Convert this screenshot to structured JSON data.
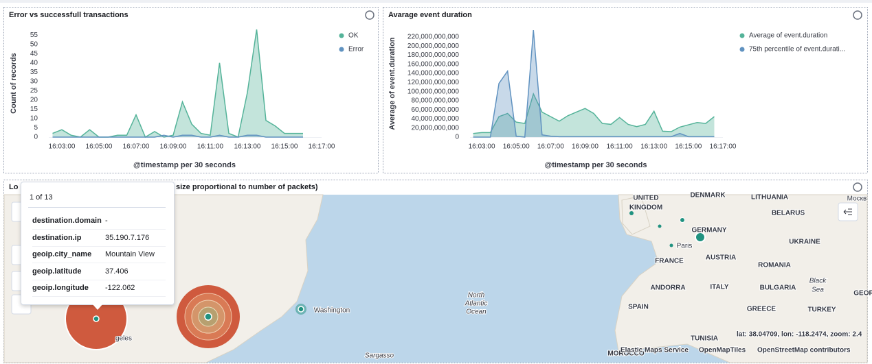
{
  "chart_data": [
    {
      "type": "area",
      "title": "Error vs successfull transactions",
      "y_label": "Count of records",
      "x_label": "@timestamp per 30 seconds",
      "x": [
        "16:02:30",
        "16:03:00",
        "16:03:30",
        "16:04:00",
        "16:04:30",
        "16:05:00",
        "16:05:30",
        "16:06:00",
        "16:06:30",
        "16:07:00",
        "16:07:30",
        "16:08:00",
        "16:08:30",
        "16:09:00",
        "16:09:30",
        "16:10:00",
        "16:10:30",
        "16:11:00",
        "16:11:30",
        "16:12:00",
        "16:12:30",
        "16:13:00",
        "16:13:30",
        "16:14:00",
        "16:14:30",
        "16:15:00",
        "16:15:30",
        "16:16:00"
      ],
      "series": [
        {
          "name": "OK",
          "color": "#54b399",
          "values": [
            2,
            4,
            1,
            0,
            4,
            0,
            0,
            1,
            1,
            12,
            0,
            3,
            0,
            1,
            19,
            7,
            2,
            1,
            40,
            2,
            0,
            24,
            58,
            9,
            6,
            2,
            2,
            2
          ]
        },
        {
          "name": "Error",
          "color": "#6092c0",
          "values": [
            0,
            0,
            0,
            0,
            0,
            0,
            0,
            0,
            0,
            0,
            0,
            0,
            1,
            0,
            1,
            1,
            0,
            0,
            1,
            0,
            0,
            1,
            1,
            0,
            0,
            0,
            0,
            0
          ]
        }
      ],
      "xlim": [
        "16:02:00",
        "16:17:00"
      ],
      "xticks": [
        "16:03:00",
        "16:05:00",
        "16:07:00",
        "16:09:00",
        "16:11:00",
        "16:13:00",
        "16:15:00",
        "16:17:00"
      ],
      "ylim": [
        0,
        58
      ],
      "yticks": [
        0,
        5,
        10,
        15,
        20,
        25,
        30,
        35,
        40,
        45,
        50,
        55
      ],
      "grid": false,
      "legend": "right"
    },
    {
      "type": "area",
      "title": "Avarage event duration",
      "y_label": "Average of event.duration",
      "x_label": "@timestamp per 30 seconds",
      "x": [
        "16:02:30",
        "16:03:00",
        "16:03:30",
        "16:04:00",
        "16:04:30",
        "16:05:00",
        "16:05:30",
        "16:06:00",
        "16:06:30",
        "16:07:00",
        "16:07:30",
        "16:08:00",
        "16:08:30",
        "16:09:00",
        "16:09:30",
        "16:10:00",
        "16:10:30",
        "16:11:00",
        "16:11:30",
        "16:12:00",
        "16:12:30",
        "16:13:00",
        "16:13:30",
        "16:14:00",
        "16:14:30",
        "16:15:00",
        "16:15:30",
        "16:16:00",
        "16:16:30"
      ],
      "series": [
        {
          "name": "Average of event.duration",
          "color": "#54b399",
          "values": [
            8000000000,
            10000000000,
            10000000000,
            45000000000,
            52000000000,
            33000000000,
            30000000000,
            95000000000,
            55000000000,
            45000000000,
            35000000000,
            47000000000,
            55000000000,
            63000000000,
            52000000000,
            30000000000,
            28000000000,
            43000000000,
            28000000000,
            23000000000,
            28000000000,
            57000000000,
            13000000000,
            12000000000,
            22000000000,
            27000000000,
            32000000000,
            30000000000,
            45000000000
          ]
        },
        {
          "name": "75th percentile of event.durati...",
          "color": "#6092c0",
          "values": [
            0,
            0,
            0,
            118000000000,
            145000000000,
            2000000000,
            0,
            235000000000,
            5000000000,
            2000000000,
            1000000000,
            1000000000,
            1000000000,
            1000000000,
            1000000000,
            1000000000,
            1000000000,
            1000000000,
            1000000000,
            1000000000,
            1000000000,
            1000000000,
            1000000000,
            1000000000,
            8000000000,
            1000000000,
            1000000000,
            1000000000,
            1000000000
          ]
        }
      ],
      "xlim": [
        "16:02:00",
        "16:17:00"
      ],
      "xticks": [
        "16:03:00",
        "16:05:00",
        "16:07:00",
        "16:09:00",
        "16:11:00",
        "16:13:00",
        "16:15:00",
        "16:17:00"
      ],
      "ylim": [
        0,
        235000000000
      ],
      "yticks": [
        0,
        {
          "value": 20000000000,
          "label": "20,000,000,000"
        },
        {
          "value": 40000000000,
          "label": "40,000,000,000"
        },
        {
          "value": 60000000000,
          "label": "60,000,000,000"
        },
        {
          "value": 80000000000,
          "label": "80,000,000,000"
        },
        {
          "value": 100000000000,
          "label": "100,000,000,000"
        },
        {
          "value": 120000000000,
          "label": "120,000,000,000"
        },
        {
          "value": 140000000000,
          "label": "140,000,000,000"
        },
        {
          "value": 160000000000,
          "label": "160,000,000,000"
        },
        {
          "value": 180000000000,
          "label": "180,000,000,000"
        },
        {
          "value": 200000000000,
          "label": "200,000,000,000"
        },
        {
          "value": 220000000000,
          "label": "220,000,000,000"
        }
      ],
      "grid": false,
      "legend": "right"
    }
  ],
  "map": {
    "title_start": "Lo",
    "title_end": "size proportional to number of packets)",
    "tooltip": {
      "count": "1 of 13",
      "rows": [
        [
          "destination.domain",
          "-"
        ],
        [
          "destination.ip",
          "35.190.7.176"
        ],
        [
          "geoip.city_name",
          "Mountain View"
        ],
        [
          "geoip.latitude",
          "37.406"
        ],
        [
          "geoip.longitude",
          "-122.062"
        ]
      ]
    },
    "labels": [
      "UNITED",
      "KINGDOM",
      "DENMARK",
      "LITHUANIA",
      "BELARUS",
      "GERMANY",
      "Paris",
      "UKRAINE",
      "FRANCE",
      "AUSTRIA",
      "ROMANIA",
      "ANDORRA",
      "ITALY",
      "BULGARIA",
      "Black",
      "Sea",
      "SPAIN",
      "GREECE",
      "TURKEY",
      "TUNISIA",
      "MOROCCO",
      "Washington",
      "North",
      "Atlantic",
      "Ocean",
      "Sargasso",
      "geles",
      "Москв",
      "GEOR"
    ],
    "coords": "lat: 38.04709, lon: -118.2474, zoom: 2.4",
    "attribution": [
      "Elastic Maps Service",
      "OpenMapTiles",
      "OpenStreetMap contributors"
    ]
  }
}
